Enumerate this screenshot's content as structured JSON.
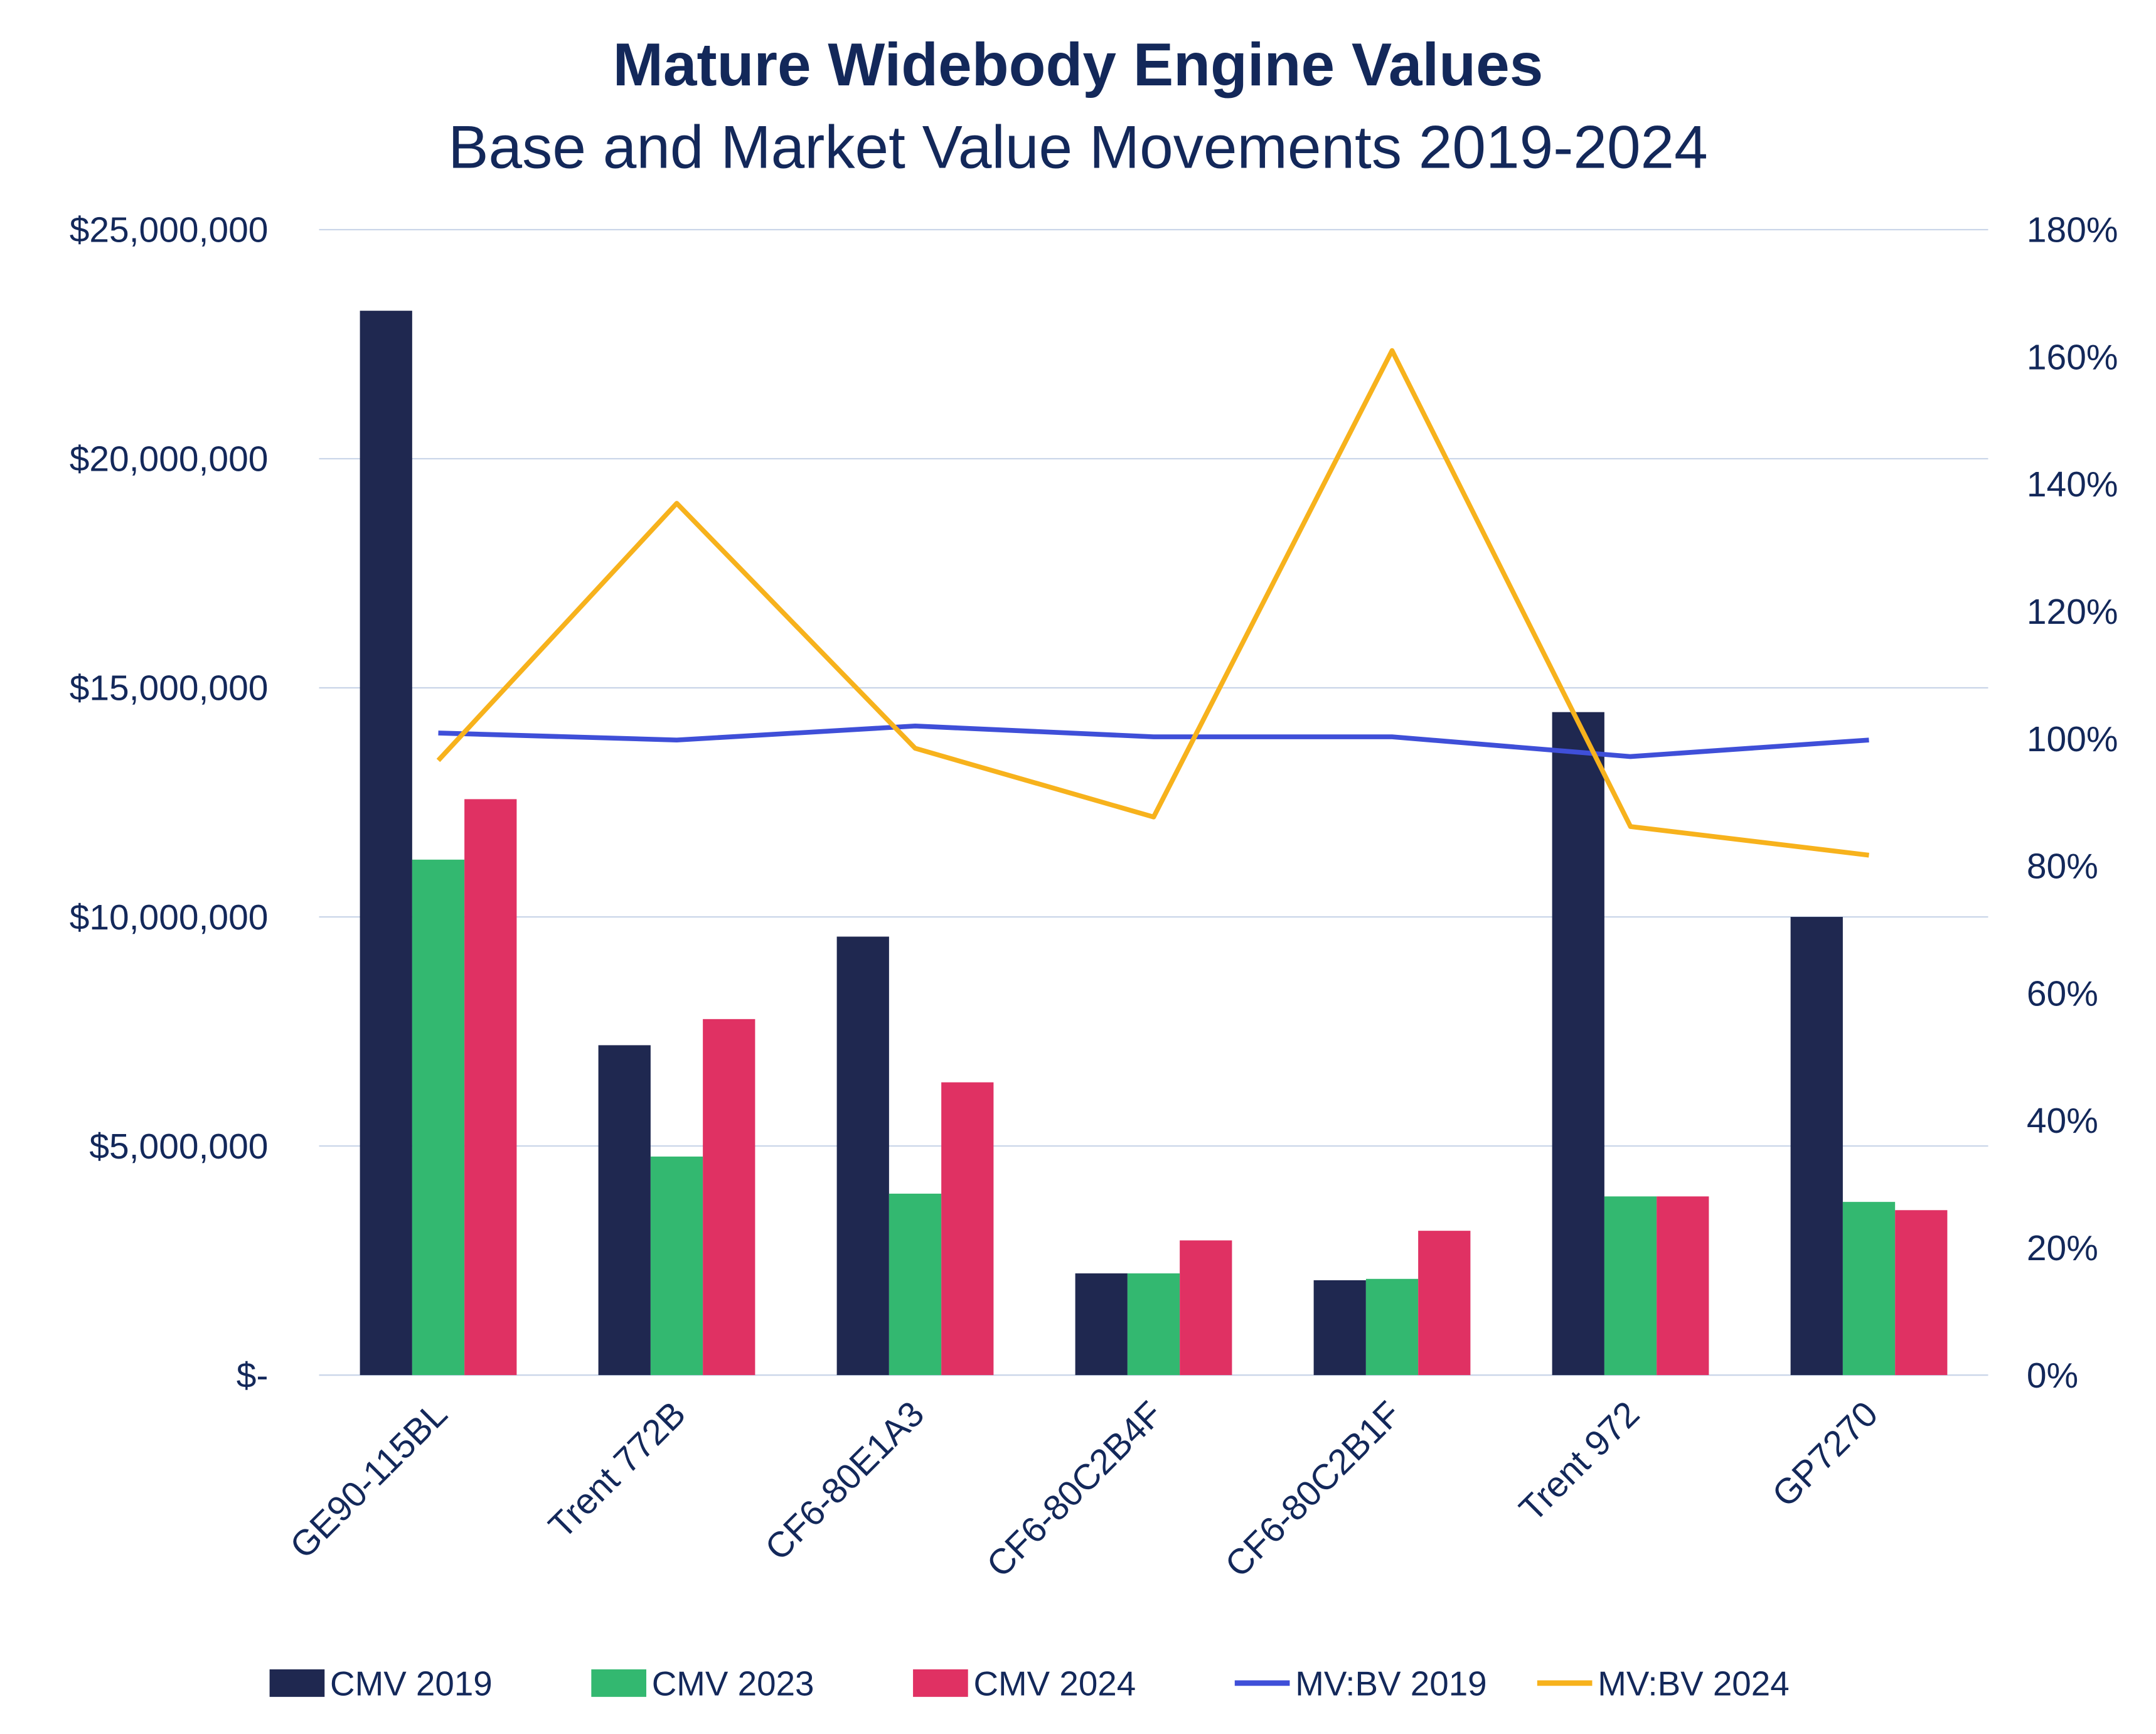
{
  "chart_data": {
    "type": "bar",
    "title": "Mature Widebody Engine Values",
    "subtitle": "Base and Market Value Movements 2019-2024",
    "categories": [
      "GE90-115BL",
      "Trent 772B",
      "CF6-80E1A3",
      "CF6-80C2B4F",
      "CF6-80C2B1F",
      "Trent 972",
      "GP7270"
    ],
    "left_axis": {
      "ylim": [
        0,
        25000000
      ],
      "ticks": [
        "$-",
        "$5,000,000",
        "$10,000,000",
        "$15,000,000",
        "$20,000,000",
        "$25,000,000"
      ],
      "tick_values": [
        0,
        5000000,
        10000000,
        15000000,
        20000000,
        25000000
      ]
    },
    "right_axis": {
      "ylim": [
        0,
        180
      ],
      "ticks": [
        "0%",
        "20%",
        "40%",
        "60%",
        "80%",
        "100%",
        "120%",
        "140%",
        "160%",
        "180%"
      ],
      "tick_values": [
        0,
        20,
        40,
        60,
        80,
        100,
        120,
        140,
        160,
        180
      ]
    },
    "grid": true,
    "legend_placement": "bottom",
    "series": [
      {
        "name": "CMV 2019",
        "type": "bar",
        "axis": "left",
        "color": "#1f2850",
        "values": [
          23230000,
          7200000,
          9570000,
          2220000,
          2070000,
          14470000,
          10000000
        ]
      },
      {
        "name": "CMV 2023",
        "type": "bar",
        "axis": "left",
        "color": "#33b870",
        "values": [
          11250000,
          4770000,
          3960000,
          2220000,
          2100000,
          3900000,
          3780000
        ]
      },
      {
        "name": "CMV 2024",
        "type": "bar",
        "axis": "left",
        "color": "#e03163",
        "values": [
          12570000,
          7770000,
          6390000,
          2940000,
          3150000,
          3900000,
          3600000
        ]
      },
      {
        "name": "MV:BV 2019",
        "type": "line",
        "axis": "right",
        "color": "#3f4fd8",
        "values": [
          100.9,
          99.8,
          102.0,
          100.3,
          100.3,
          97.2,
          99.8
        ]
      },
      {
        "name": "MV:BV 2024",
        "type": "line",
        "axis": "right",
        "color": "#f7b21c",
        "values": [
          96.6,
          137.0,
          98.5,
          87.7,
          161.0,
          86.2,
          81.7
        ]
      }
    ]
  }
}
